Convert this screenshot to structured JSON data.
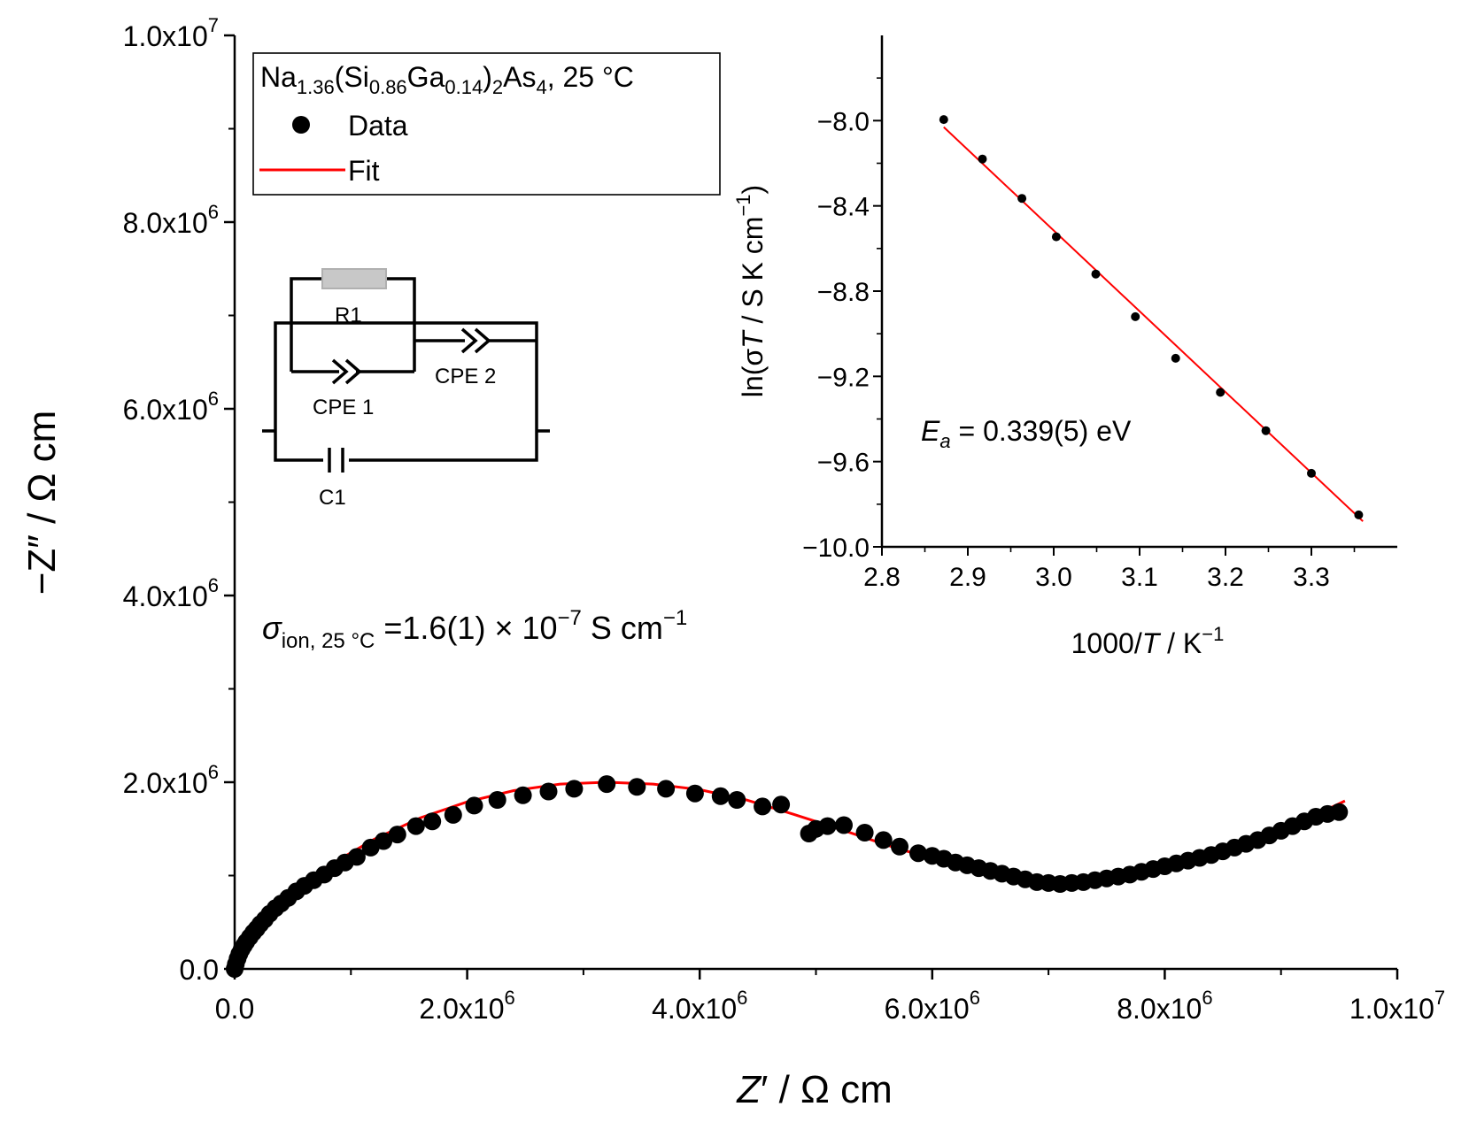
{
  "chart_data": [
    {
      "type": "scatter",
      "title": "",
      "xlabel_main": "Z",
      "xlabel_prime": "′",
      "xlabel_rest": " / Ω cm",
      "ylabel": "−Z″ / Ω cm",
      "xlim": [
        0,
        10000000
      ],
      "ylim": [
        0,
        10000000
      ],
      "xticks": [
        0,
        2000000,
        4000000,
        6000000,
        8000000,
        10000000
      ],
      "yticks": [
        0,
        2000000,
        4000000,
        6000000,
        8000000,
        10000000
      ],
      "xtick_labels": [
        {
          "base": "0.0",
          "exp": ""
        },
        {
          "base": "2.0x10",
          "exp": "6"
        },
        {
          "base": "4.0x10",
          "exp": "6"
        },
        {
          "base": "6.0x10",
          "exp": "6"
        },
        {
          "base": "8.0x10",
          "exp": "6"
        },
        {
          "base": "1.0x10",
          "exp": "7"
        }
      ],
      "ytick_labels": [
        {
          "base": "0.0",
          "exp": ""
        },
        {
          "base": "2.0x10",
          "exp": "6"
        },
        {
          "base": "4.0x10",
          "exp": "6"
        },
        {
          "base": "6.0x10",
          "exp": "6"
        },
        {
          "base": "8.0x10",
          "exp": "6"
        },
        {
          "base": "1.0x10",
          "exp": "7"
        }
      ],
      "legend": {
        "placement": "top-left",
        "title": {
          "a": "Na",
          "b": "1.36",
          "c": "(Si",
          "d": "0.86",
          "e": "Ga",
          "f": "0.14",
          "g": ")",
          "h": "2",
          "i": "As",
          "j": "4",
          "k": ", 25 °C"
        },
        "entries": [
          {
            "name": "Data",
            "marker": "circle",
            "color": "#000000"
          },
          {
            "name": "Fit",
            "marker": "line",
            "color": "#ff0000"
          }
        ]
      },
      "conductivity_annotation": {
        "symbol": "σ",
        "subscript": "ion, 25 °C",
        "value": " =1.6(1) × 10",
        "exp": "−7",
        "unit": " S cm",
        "unit_exp": "−1"
      },
      "circuit": {
        "labels": [
          "R1",
          "CPE 1",
          "CPE 2",
          "C1"
        ]
      },
      "series": [
        {
          "name": "Data",
          "color": "#000000",
          "points": [
            [
              0,
              0
            ],
            [
              10000,
              50000
            ],
            [
              25000,
              110000
            ],
            [
              40000,
              160000
            ],
            [
              60000,
              210000
            ],
            [
              80000,
              250000
            ],
            [
              100000,
              290000
            ],
            [
              130000,
              340000
            ],
            [
              160000,
              390000
            ],
            [
              190000,
              430000
            ],
            [
              220000,
              480000
            ],
            [
              260000,
              530000
            ],
            [
              300000,
              590000
            ],
            [
              350000,
              650000
            ],
            [
              400000,
              700000
            ],
            [
              460000,
              760000
            ],
            [
              530000,
              830000
            ],
            [
              600000,
              890000
            ],
            [
              680000,
              950000
            ],
            [
              770000,
              1010000
            ],
            [
              860000,
              1080000
            ],
            [
              950000,
              1140000
            ],
            [
              1050000,
              1200000
            ],
            [
              1170000,
              1300000
            ],
            [
              1280000,
              1370000
            ],
            [
              1400000,
              1440000
            ],
            [
              1560000,
              1530000
            ],
            [
              1700000,
              1580000
            ],
            [
              1880000,
              1650000
            ],
            [
              2060000,
              1750000
            ],
            [
              2260000,
              1810000
            ],
            [
              2480000,
              1860000
            ],
            [
              2700000,
              1900000
            ],
            [
              2920000,
              1930000
            ],
            [
              3200000,
              1980000
            ],
            [
              3460000,
              1950000
            ],
            [
              3710000,
              1930000
            ],
            [
              3960000,
              1880000
            ],
            [
              4180000,
              1850000
            ],
            [
              4320000,
              1810000
            ],
            [
              4540000,
              1740000
            ],
            [
              4700000,
              1760000
            ],
            [
              4940000,
              1450000
            ],
            [
              5000000,
              1500000
            ],
            [
              5100000,
              1530000
            ],
            [
              5240000,
              1540000
            ],
            [
              5420000,
              1460000
            ],
            [
              5580000,
              1380000
            ],
            [
              5720000,
              1310000
            ],
            [
              5880000,
              1240000
            ],
            [
              6000000,
              1210000
            ],
            [
              6100000,
              1180000
            ],
            [
              6200000,
              1140000
            ],
            [
              6300000,
              1110000
            ],
            [
              6400000,
              1080000
            ],
            [
              6500000,
              1050000
            ],
            [
              6600000,
              1020000
            ],
            [
              6700000,
              990000
            ],
            [
              6800000,
              960000
            ],
            [
              6900000,
              930000
            ],
            [
              7000000,
              920000
            ],
            [
              7100000,
              910000
            ],
            [
              7200000,
              920000
            ],
            [
              7300000,
              930000
            ],
            [
              7400000,
              950000
            ],
            [
              7500000,
              970000
            ],
            [
              7600000,
              990000
            ],
            [
              7700000,
              1010000
            ],
            [
              7800000,
              1040000
            ],
            [
              7900000,
              1070000
            ],
            [
              8000000,
              1100000
            ],
            [
              8100000,
              1130000
            ],
            [
              8200000,
              1160000
            ],
            [
              8300000,
              1190000
            ],
            [
              8400000,
              1220000
            ],
            [
              8500000,
              1260000
            ],
            [
              8600000,
              1300000
            ],
            [
              8700000,
              1340000
            ],
            [
              8800000,
              1380000
            ],
            [
              8900000,
              1430000
            ],
            [
              9000000,
              1480000
            ],
            [
              9100000,
              1530000
            ],
            [
              9200000,
              1580000
            ],
            [
              9300000,
              1630000
            ],
            [
              9400000,
              1660000
            ],
            [
              9500000,
              1680000
            ]
          ]
        },
        {
          "name": "Fit",
          "color": "#ff0000",
          "points": [
            [
              0,
              0
            ],
            [
              50000,
              180000
            ],
            [
              150000,
              390000
            ],
            [
              300000,
              600000
            ],
            [
              500000,
              830000
            ],
            [
              800000,
              1100000
            ],
            [
              1200000,
              1390000
            ],
            [
              1600000,
              1620000
            ],
            [
              2000000,
              1790000
            ],
            [
              2400000,
              1910000
            ],
            [
              2800000,
              1980000
            ],
            [
              3200000,
              2000000
            ],
            [
              3600000,
              1980000
            ],
            [
              4000000,
              1920000
            ],
            [
              4400000,
              1810000
            ],
            [
              4800000,
              1660000
            ],
            [
              5200000,
              1500000
            ],
            [
              5600000,
              1330000
            ],
            [
              6000000,
              1180000
            ],
            [
              6400000,
              1050000
            ],
            [
              6800000,
              950000
            ],
            [
              7100000,
              910000
            ],
            [
              7400000,
              940000
            ],
            [
              7800000,
              1040000
            ],
            [
              8200000,
              1180000
            ],
            [
              8600000,
              1330000
            ],
            [
              9000000,
              1500000
            ],
            [
              9300000,
              1650000
            ],
            [
              9550000,
              1800000
            ]
          ]
        }
      ]
    },
    {
      "type": "scatter",
      "title": "",
      "xlabel_a": "1000/",
      "xlabel_T": "T",
      "xlabel_b": " / K",
      "xlabel_exp": "−1",
      "ylabel_a": "ln(σ",
      "ylabel_T": "T",
      "ylabel_b": " / S K cm",
      "ylabel_exp": "−1",
      "ylabel_c": ")",
      "xlim": [
        2.8,
        3.4
      ],
      "ylim": [
        -10.0,
        -7.6
      ],
      "xticks": [
        2.8,
        2.9,
        3.0,
        3.1,
        3.2,
        3.3
      ],
      "yticks": [
        -10.0,
        -9.6,
        -9.2,
        -8.8,
        -8.4,
        -8.0
      ],
      "xtick_labels": [
        "2.8",
        "2.9",
        "3.0",
        "3.1",
        "3.2",
        "3.3"
      ],
      "ytick_labels": [
        "−10.0",
        "−9.6",
        "−9.2",
        "−8.8",
        "−8.4",
        "−8.0"
      ],
      "annotation": {
        "symbol": "E",
        "sub": "a",
        "text": " = 0.339(5) eV"
      },
      "series": [
        {
          "name": "Data",
          "color": "#000000",
          "points": [
            [
              2.872,
              -7.995
            ],
            [
              2.917,
              -8.18
            ],
            [
              2.963,
              -8.365
            ],
            [
              3.003,
              -8.545
            ],
            [
              3.049,
              -8.72
            ],
            [
              3.095,
              -8.92
            ],
            [
              3.142,
              -9.115
            ],
            [
              3.194,
              -9.275
            ],
            [
              3.247,
              -9.455
            ],
            [
              3.3,
              -9.655
            ],
            [
              3.355,
              -9.85
            ]
          ]
        },
        {
          "name": "Fit",
          "color": "#ff0000",
          "points": [
            [
              2.872,
              -8.03
            ],
            [
              3.36,
              -9.88
            ]
          ]
        }
      ]
    }
  ]
}
